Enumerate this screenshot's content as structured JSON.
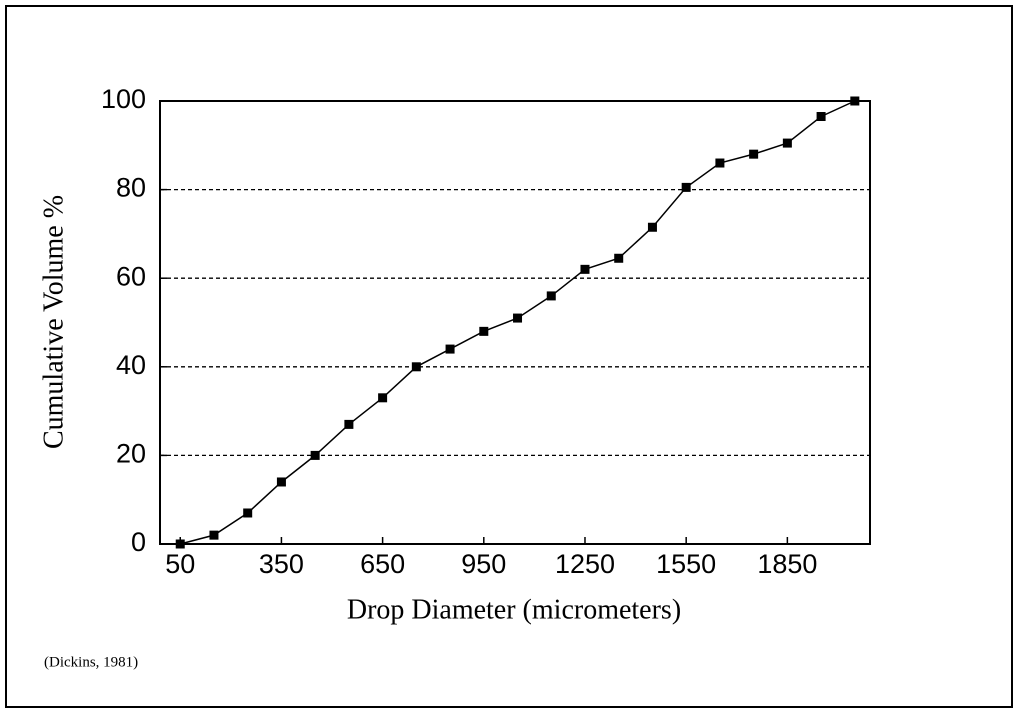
{
  "chart_data": {
    "type": "line",
    "x_label": "Drop Diameter (micrometers)",
    "y_label": "Cumulative Volume %",
    "annotation": "(Dickins, 1981)",
    "x": [
      50,
      150,
      250,
      350,
      450,
      550,
      650,
      750,
      850,
      950,
      1050,
      1150,
      1250,
      1350,
      1450,
      1550,
      1650,
      1750,
      1850,
      1950,
      2050
    ],
    "series": [
      {
        "name": "Cumulative Volume",
        "color": "#000000",
        "values": [
          0,
          2,
          7,
          14,
          20,
          27,
          33,
          40,
          44,
          48,
          51,
          56,
          62,
          64.5,
          71.5,
          80.5,
          86,
          88,
          90.5,
          96.5,
          100
        ]
      }
    ],
    "xlim": [
      -10,
      2095
    ],
    "xticks": [
      50,
      350,
      650,
      950,
      1250,
      1550,
      1850
    ],
    "ylim": [
      0,
      100
    ],
    "yticks": [
      0,
      20,
      40,
      60,
      80,
      100
    ],
    "grid": true
  }
}
